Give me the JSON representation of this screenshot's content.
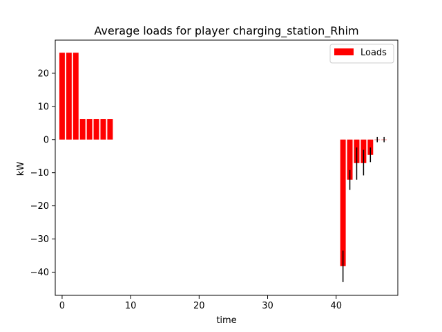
{
  "chart_data": {
    "type": "bar",
    "title": "Average loads for player charging_station_Rhim",
    "xlabel": "time",
    "ylabel": "kW",
    "xlim": [
      -1,
      49
    ],
    "ylim": [
      -47,
      30
    ],
    "xticks": [
      0,
      10,
      20,
      30,
      40
    ],
    "yticks": [
      20,
      10,
      0,
      -10,
      -20,
      -30,
      -40
    ],
    "xtick_labels": [
      "0",
      "10",
      "20",
      "30",
      "40"
    ],
    "ytick_labels": [
      "20",
      "10",
      "0",
      "−10",
      "−20",
      "−30",
      "−40"
    ],
    "bar_width": 0.8,
    "legend": {
      "position": "top-right",
      "entries": [
        "Loads"
      ]
    },
    "series": [
      {
        "name": "Loads",
        "color": "#ff0000",
        "points": [
          {
            "x": 0,
            "y": 26.2
          },
          {
            "x": 1,
            "y": 26.2
          },
          {
            "x": 2,
            "y": 26.2
          },
          {
            "x": 3,
            "y": 6.2
          },
          {
            "x": 4,
            "y": 6.2
          },
          {
            "x": 5,
            "y": 6.2
          },
          {
            "x": 6,
            "y": 6.2
          },
          {
            "x": 7,
            "y": 6.2
          },
          {
            "x": 41,
            "y": -38.2,
            "err_low": -43.0,
            "err_high": -33.5
          },
          {
            "x": 42,
            "y": -12.1,
            "err_low": -15.2,
            "err_high": -9.2
          },
          {
            "x": 43,
            "y": -7.1,
            "err_low": -12.1,
            "err_high": -2.4
          },
          {
            "x": 44,
            "y": -7.1,
            "err_low": -10.8,
            "err_high": -3.1
          },
          {
            "x": 45,
            "y": -4.6,
            "err_low": -6.8,
            "err_high": -2.4
          },
          {
            "x": 46,
            "y": 0.0,
            "err_low": -0.8,
            "err_high": 0.8
          },
          {
            "x": 47,
            "y": 0.0,
            "err_low": -0.8,
            "err_high": 0.8
          }
        ]
      }
    ]
  }
}
